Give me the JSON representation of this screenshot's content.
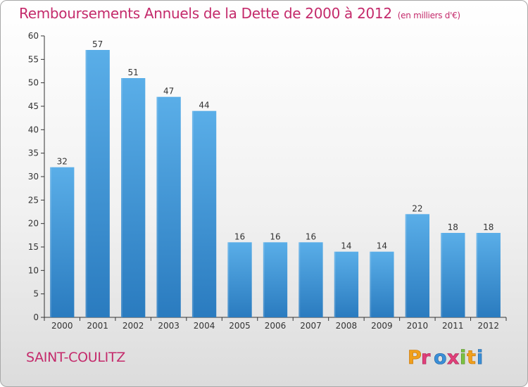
{
  "chart_data": {
    "type": "bar",
    "title": "Remboursements Annuels de la Dette de 2000 à 2012",
    "subtitle": "(en milliers d'€)",
    "categories": [
      "2000",
      "2001",
      "2002",
      "2003",
      "2004",
      "2005",
      "2006",
      "2007",
      "2008",
      "2009",
      "2010",
      "2011",
      "2012"
    ],
    "values": [
      32,
      57,
      51,
      47,
      44,
      16,
      16,
      16,
      14,
      14,
      22,
      18,
      18
    ],
    "ylim": [
      0,
      60
    ],
    "yticks": [
      0,
      5,
      10,
      15,
      20,
      25,
      30,
      35,
      40,
      45,
      50,
      55,
      60
    ],
    "grid": false,
    "bar_color_top": "#5aaee8",
    "bar_color_bottom": "#2a7bbf"
  },
  "footer": {
    "commune": "SAINT-COULITZ",
    "brand": "Proxiti"
  },
  "colors": {
    "title": "#c42a6b",
    "axis": "#333333"
  }
}
